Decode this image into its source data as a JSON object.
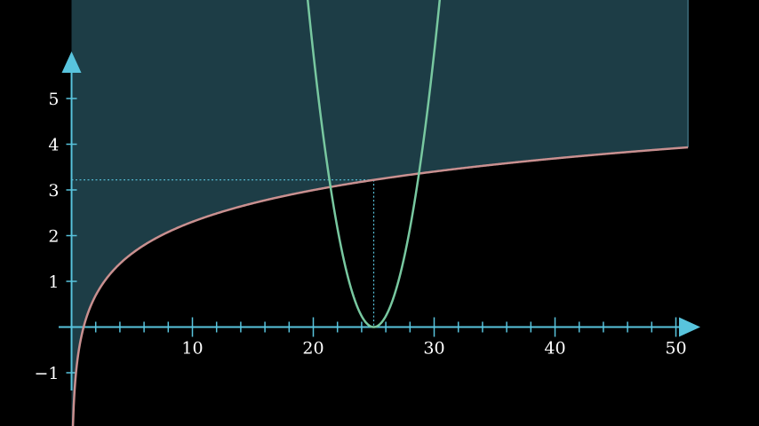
{
  "chart_data": {
    "type": "line",
    "title": "",
    "xlabel": "",
    "ylabel": "",
    "xlim": [
      0,
      51
    ],
    "ylim": [
      -2.1,
      7
    ],
    "grid": false,
    "x_ticks": [
      10,
      20,
      30,
      40,
      50
    ],
    "x_tick_labels": [
      "10",
      "20",
      "30",
      "40",
      "50"
    ],
    "x_minor_step": 2,
    "y_ticks": [
      -1,
      1,
      2,
      3,
      4,
      5
    ],
    "y_tick_labels": [
      "−1",
      "1",
      "2",
      "3",
      "4",
      "5"
    ],
    "series": [
      {
        "kind": "log",
        "formula": "y = ln(x)",
        "x_range": [
          0.13,
          51
        ],
        "color": "#c99090"
      },
      {
        "kind": "parabola",
        "formula": "y = 0.24 (x - 25)^2",
        "vertex": [
          25,
          0
        ],
        "color": "#78c8a0"
      }
    ],
    "shaded_region": {
      "description": "area above y = ln(x)",
      "x_range": [
        0,
        51
      ],
      "fill": "#1d3d46",
      "edge": "#3d6e7c"
    },
    "marked_point": {
      "x": 25,
      "y": 3.22
    },
    "colors": {
      "axis": "#58c4dd",
      "background": "#000000"
    }
  }
}
